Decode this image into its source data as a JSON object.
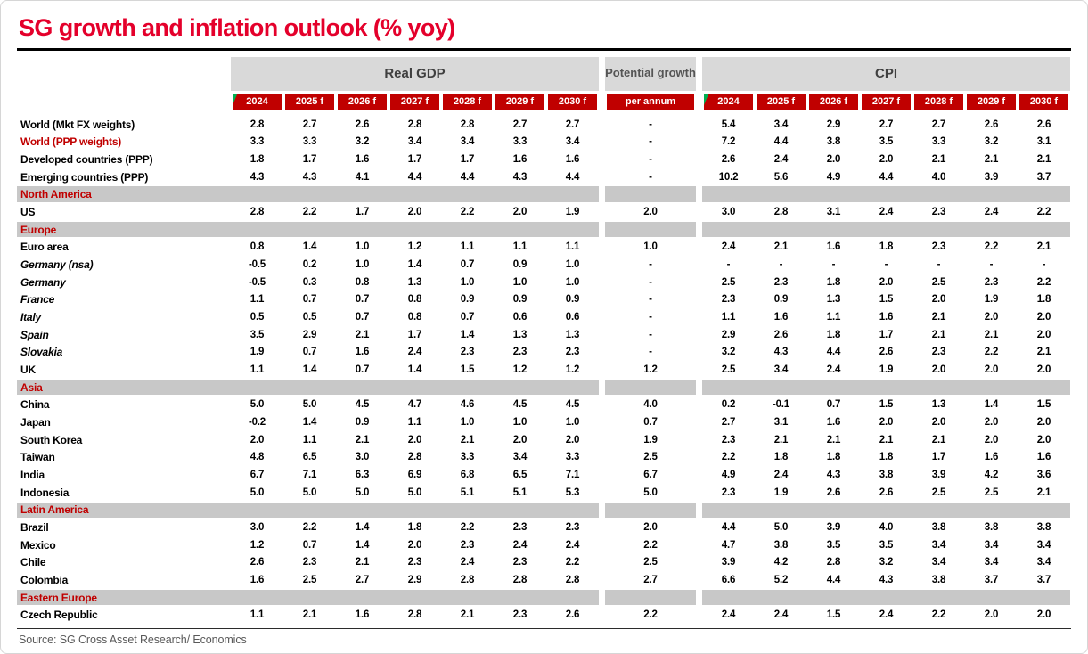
{
  "page": {
    "title": "SG growth and inflation outlook (% yoy)",
    "source": "Source: SG Cross Asset Research/ Economics"
  },
  "colors": {
    "title_red": "#e4002b",
    "badge_red": "#c00000",
    "section_red": "#c00000",
    "header_band_gray": "#d9d9d9",
    "section_band_gray": "#c8c8c8",
    "comment_marker_green": "#00b050"
  },
  "header": {
    "groups": {
      "real_gdp": "Real GDP",
      "potential_growth": "Potential growth",
      "cpi": "CPI"
    },
    "per_annum_label": "per annum",
    "years": [
      "2024",
      "2025 f",
      "2026 f",
      "2027 f",
      "2028 f",
      "2029 f",
      "2030 f"
    ]
  },
  "table": {
    "rows": [
      {
        "type": "data",
        "label": "World (Mkt FX weights)",
        "label_style": "bold",
        "gdp": [
          "2.8",
          "2.7",
          "2.6",
          "2.8",
          "2.8",
          "2.7",
          "2.7"
        ],
        "potential": "-",
        "cpi": [
          "5.4",
          "3.4",
          "2.9",
          "2.7",
          "2.7",
          "2.6",
          "2.6"
        ]
      },
      {
        "type": "data",
        "label": "World (PPP weights)",
        "label_style": "bold-red",
        "gdp": [
          "3.3",
          "3.3",
          "3.2",
          "3.4",
          "3.4",
          "3.3",
          "3.4"
        ],
        "potential": "-",
        "cpi": [
          "7.2",
          "4.4",
          "3.8",
          "3.5",
          "3.3",
          "3.2",
          "3.1"
        ]
      },
      {
        "type": "data",
        "label": "Developed countries (PPP)",
        "label_style": "bold",
        "gdp": [
          "1.8",
          "1.7",
          "1.6",
          "1.7",
          "1.7",
          "1.6",
          "1.6"
        ],
        "potential": "-",
        "cpi": [
          "2.6",
          "2.4",
          "2.0",
          "2.0",
          "2.1",
          "2.1",
          "2.1"
        ]
      },
      {
        "type": "data",
        "label": "Emerging countries (PPP)",
        "label_style": "bold",
        "gdp": [
          "4.3",
          "4.3",
          "4.1",
          "4.4",
          "4.4",
          "4.3",
          "4.4"
        ],
        "potential": "-",
        "cpi": [
          "10.2",
          "5.6",
          "4.9",
          "4.4",
          "4.0",
          "3.9",
          "3.7"
        ]
      },
      {
        "type": "section",
        "label": "North America"
      },
      {
        "type": "data",
        "label": "US",
        "label_style": "bold",
        "gdp": [
          "2.8",
          "2.2",
          "1.7",
          "2.0",
          "2.2",
          "2.0",
          "1.9"
        ],
        "potential": "2.0",
        "cpi": [
          "3.0",
          "2.8",
          "3.1",
          "2.4",
          "2.3",
          "2.4",
          "2.2"
        ]
      },
      {
        "type": "section",
        "label": "Europe"
      },
      {
        "type": "data",
        "label": "Euro area",
        "label_style": "bold",
        "gdp": [
          "0.8",
          "1.4",
          "1.0",
          "1.2",
          "1.1",
          "1.1",
          "1.1"
        ],
        "potential": "1.0",
        "cpi": [
          "2.4",
          "2.1",
          "1.6",
          "1.8",
          "2.3",
          "2.2",
          "2.1"
        ]
      },
      {
        "type": "data",
        "label": "Germany (nsa)",
        "label_style": "bold-italic",
        "gdp": [
          "-0.5",
          "0.2",
          "1.0",
          "1.4",
          "0.7",
          "0.9",
          "1.0"
        ],
        "potential": "-",
        "cpi": [
          "-",
          "-",
          "-",
          "-",
          "-",
          "-",
          "-"
        ]
      },
      {
        "type": "data",
        "label": "Germany",
        "label_style": "bold-italic",
        "gdp": [
          "-0.5",
          "0.3",
          "0.8",
          "1.3",
          "1.0",
          "1.0",
          "1.0"
        ],
        "potential": "-",
        "cpi": [
          "2.5",
          "2.3",
          "1.8",
          "2.0",
          "2.5",
          "2.3",
          "2.2"
        ]
      },
      {
        "type": "data",
        "label": "France",
        "label_style": "bold-italic",
        "gdp": [
          "1.1",
          "0.7",
          "0.7",
          "0.8",
          "0.9",
          "0.9",
          "0.9"
        ],
        "potential": "-",
        "cpi": [
          "2.3",
          "0.9",
          "1.3",
          "1.5",
          "2.0",
          "1.9",
          "1.8"
        ]
      },
      {
        "type": "data",
        "label": "Italy",
        "label_style": "bold-italic",
        "gdp": [
          "0.5",
          "0.5",
          "0.7",
          "0.8",
          "0.7",
          "0.6",
          "0.6"
        ],
        "potential": "-",
        "cpi": [
          "1.1",
          "1.6",
          "1.1",
          "1.6",
          "2.1",
          "2.0",
          "2.0"
        ]
      },
      {
        "type": "data",
        "label": "Spain",
        "label_style": "bold-italic",
        "gdp": [
          "3.5",
          "2.9",
          "2.1",
          "1.7",
          "1.4",
          "1.3",
          "1.3"
        ],
        "potential": "-",
        "cpi": [
          "2.9",
          "2.6",
          "1.8",
          "1.7",
          "2.1",
          "2.1",
          "2.0"
        ]
      },
      {
        "type": "data",
        "label": "Slovakia",
        "label_style": "bold-italic",
        "gdp": [
          "1.9",
          "0.7",
          "1.6",
          "2.4",
          "2.3",
          "2.3",
          "2.3"
        ],
        "potential": "-",
        "cpi": [
          "3.2",
          "4.3",
          "4.4",
          "2.6",
          "2.3",
          "2.2",
          "2.1"
        ]
      },
      {
        "type": "data",
        "label": "UK",
        "label_style": "bold",
        "gdp": [
          "1.1",
          "1.4",
          "0.7",
          "1.4",
          "1.5",
          "1.2",
          "1.2"
        ],
        "potential": "1.2",
        "cpi": [
          "2.5",
          "3.4",
          "2.4",
          "1.9",
          "2.0",
          "2.0",
          "2.0"
        ]
      },
      {
        "type": "section",
        "label": "Asia"
      },
      {
        "type": "data",
        "label": "China",
        "label_style": "bold",
        "gdp": [
          "5.0",
          "5.0",
          "4.5",
          "4.7",
          "4.6",
          "4.5",
          "4.5"
        ],
        "potential": "4.0",
        "cpi": [
          "0.2",
          "-0.1",
          "0.7",
          "1.5",
          "1.3",
          "1.4",
          "1.5"
        ]
      },
      {
        "type": "data",
        "label": "Japan",
        "label_style": "bold",
        "gdp": [
          "-0.2",
          "1.4",
          "0.9",
          "1.1",
          "1.0",
          "1.0",
          "1.0"
        ],
        "potential": "0.7",
        "cpi": [
          "2.7",
          "3.1",
          "1.6",
          "2.0",
          "2.0",
          "2.0",
          "2.0"
        ]
      },
      {
        "type": "data",
        "label": "South Korea",
        "label_style": "bold",
        "gdp": [
          "2.0",
          "1.1",
          "2.1",
          "2.0",
          "2.1",
          "2.0",
          "2.0"
        ],
        "potential": "1.9",
        "cpi": [
          "2.3",
          "2.1",
          "2.1",
          "2.1",
          "2.1",
          "2.0",
          "2.0"
        ]
      },
      {
        "type": "data",
        "label": "Taiwan",
        "label_style": "bold",
        "gdp": [
          "4.8",
          "6.5",
          "3.0",
          "2.8",
          "3.3",
          "3.4",
          "3.3"
        ],
        "potential": "2.5",
        "cpi": [
          "2.2",
          "1.8",
          "1.8",
          "1.8",
          "1.7",
          "1.6",
          "1.6"
        ]
      },
      {
        "type": "data",
        "label": "India",
        "label_style": "bold",
        "gdp": [
          "6.7",
          "7.1",
          "6.3",
          "6.9",
          "6.8",
          "6.5",
          "7.1"
        ],
        "potential": "6.7",
        "cpi": [
          "4.9",
          "2.4",
          "4.3",
          "3.8",
          "3.9",
          "4.2",
          "3.6"
        ]
      },
      {
        "type": "data",
        "label": "Indonesia",
        "label_style": "bold",
        "gdp": [
          "5.0",
          "5.0",
          "5.0",
          "5.0",
          "5.1",
          "5.1",
          "5.3"
        ],
        "potential": "5.0",
        "cpi": [
          "2.3",
          "1.9",
          "2.6",
          "2.6",
          "2.5",
          "2.5",
          "2.1"
        ]
      },
      {
        "type": "section",
        "label": "Latin America"
      },
      {
        "type": "data",
        "label": "Brazil",
        "label_style": "bold",
        "gdp": [
          "3.0",
          "2.2",
          "1.4",
          "1.8",
          "2.2",
          "2.3",
          "2.3"
        ],
        "potential": "2.0",
        "cpi": [
          "4.4",
          "5.0",
          "3.9",
          "4.0",
          "3.8",
          "3.8",
          "3.8"
        ]
      },
      {
        "type": "data",
        "label": "Mexico",
        "label_style": "bold",
        "gdp": [
          "1.2",
          "0.7",
          "1.4",
          "2.0",
          "2.3",
          "2.4",
          "2.4"
        ],
        "potential": "2.2",
        "cpi": [
          "4.7",
          "3.8",
          "3.5",
          "3.5",
          "3.4",
          "3.4",
          "3.4"
        ]
      },
      {
        "type": "data",
        "label": "Chile",
        "label_style": "bold",
        "gdp": [
          "2.6",
          "2.3",
          "2.1",
          "2.3",
          "2.4",
          "2.3",
          "2.2"
        ],
        "potential": "2.5",
        "cpi": [
          "3.9",
          "4.2",
          "2.8",
          "3.2",
          "3.4",
          "3.4",
          "3.4"
        ]
      },
      {
        "type": "data",
        "label": "Colombia",
        "label_style": "bold",
        "gdp": [
          "1.6",
          "2.5",
          "2.7",
          "2.9",
          "2.8",
          "2.8",
          "2.8"
        ],
        "potential": "2.7",
        "cpi": [
          "6.6",
          "5.2",
          "4.4",
          "4.3",
          "3.8",
          "3.7",
          "3.7"
        ]
      },
      {
        "type": "section",
        "label": "Eastern Europe"
      },
      {
        "type": "data",
        "label": "Czech Republic",
        "label_style": "bold",
        "gdp": [
          "1.1",
          "2.1",
          "1.6",
          "2.8",
          "2.1",
          "2.3",
          "2.6"
        ],
        "potential": "2.2",
        "cpi": [
          "2.4",
          "2.4",
          "1.5",
          "2.4",
          "2.2",
          "2.0",
          "2.0"
        ]
      }
    ]
  }
}
